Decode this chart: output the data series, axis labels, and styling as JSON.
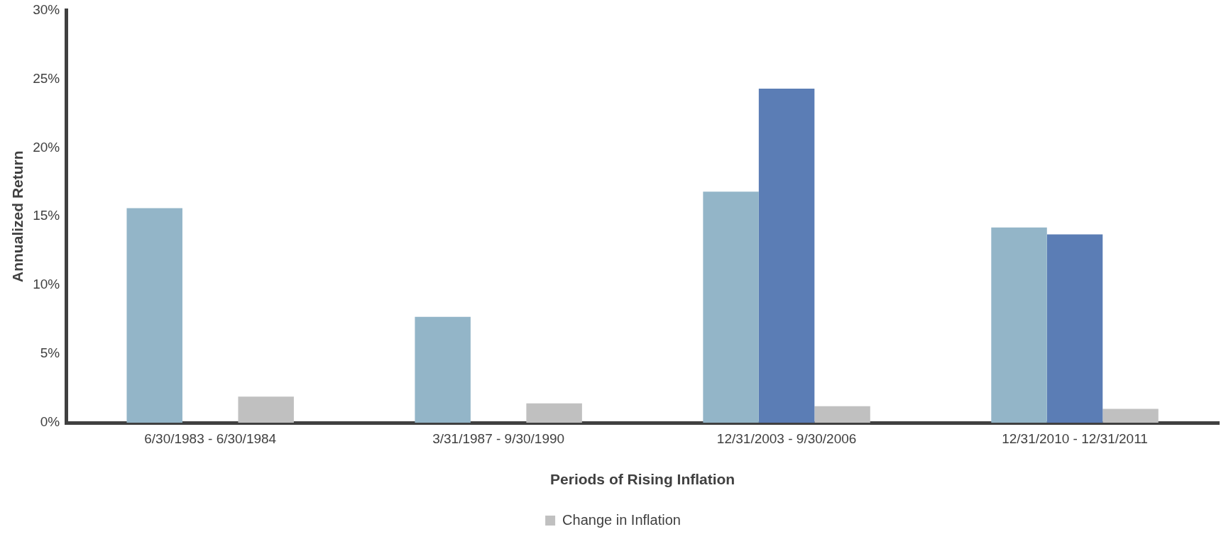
{
  "chart_data": {
    "type": "bar",
    "xlabel": "Periods of Rising Inflation",
    "ylabel": "Annualized Return",
    "categories": [
      "6/30/1983 - 6/30/1984",
      "3/31/1987 - 9/30/1990",
      "12/31/2003 - 9/30/2006",
      "12/31/2010 - 12/31/2011"
    ],
    "series": [
      {
        "color": "#93b5c8",
        "values": [
          15.6,
          7.7,
          16.8,
          14.2
        ]
      },
      {
        "color": "#5b7db5",
        "values": [
          null,
          null,
          24.3,
          13.7
        ]
      },
      {
        "name": "Change in Inflation",
        "color": "#c0c0c0",
        "values": [
          1.9,
          1.4,
          1.2,
          1.0
        ]
      }
    ],
    "ylim": [
      0,
      30
    ],
    "yticks": [
      {
        "value": 0,
        "label": "0%"
      },
      {
        "value": 5,
        "label": "5%"
      },
      {
        "value": 10,
        "label": "10%"
      },
      {
        "value": 15,
        "label": "15%"
      },
      {
        "value": 20,
        "label": "20%"
      },
      {
        "value": 25,
        "label": "25%"
      },
      {
        "value": 30,
        "label": "30%"
      }
    ],
    "grid": false,
    "legend": "bottom"
  }
}
